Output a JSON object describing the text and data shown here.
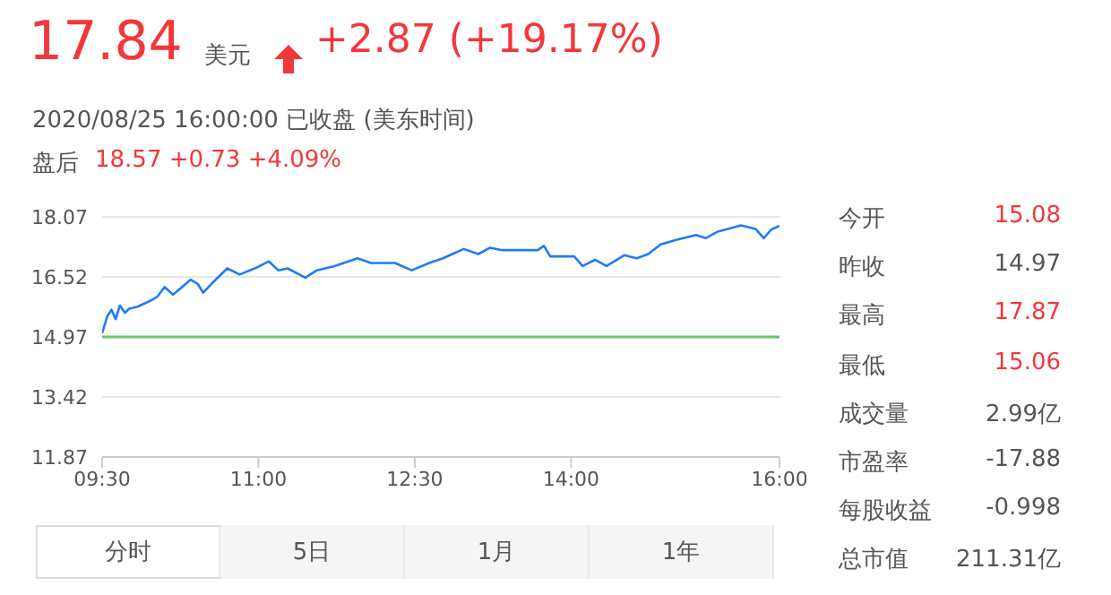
{
  "chart_data": {
    "type": "line",
    "x": [
      9.5,
      9.55,
      9.59,
      9.63,
      9.67,
      9.72,
      9.76,
      9.84,
      9.96,
      10.03,
      10.1,
      10.18,
      10.25,
      10.35,
      10.42,
      10.47,
      10.56,
      10.7,
      10.82,
      10.99,
      11.1,
      11.19,
      11.28,
      11.45,
      11.56,
      11.73,
      11.95,
      12.08,
      12.31,
      12.47,
      12.65,
      12.77,
      12.97,
      13.11,
      13.22,
      13.34,
      13.51,
      13.68,
      13.74,
      13.8,
      14.03,
      14.11,
      14.23,
      14.34,
      14.51,
      14.63,
      14.74,
      14.86,
      15.0,
      15.2,
      15.29,
      15.4,
      15.63,
      15.77,
      15.85,
      15.92,
      16.0
    ],
    "series": [
      {
        "color": "#1f7cf5",
        "values": [
          15.07,
          15.51,
          15.67,
          15.43,
          15.78,
          15.59,
          15.7,
          15.75,
          15.9,
          16.01,
          16.26,
          16.06,
          16.22,
          16.45,
          16.33,
          16.11,
          16.37,
          16.74,
          16.58,
          16.77,
          16.92,
          16.69,
          16.74,
          16.5,
          16.69,
          16.8,
          17.0,
          16.88,
          16.88,
          16.69,
          16.89,
          17.0,
          17.24,
          17.11,
          17.27,
          17.21,
          17.21,
          17.21,
          17.32,
          17.05,
          17.05,
          16.8,
          16.96,
          16.8,
          17.08,
          17.0,
          17.11,
          17.36,
          17.47,
          17.6,
          17.52,
          17.68,
          17.85,
          17.76,
          17.52,
          17.74,
          17.84
        ]
      }
    ],
    "xlim": [
      9.5,
      16
    ],
    "xticks": [
      {
        "value": 9.5,
        "label": "09:30"
      },
      {
        "value": 11,
        "label": "11:00"
      },
      {
        "value": 12.5,
        "label": "12:30"
      },
      {
        "value": 14,
        "label": "14:00"
      },
      {
        "value": 16,
        "label": "16:00"
      }
    ],
    "ylim": [
      11.87,
      18.07
    ],
    "yticks": [
      11.87,
      13.42,
      14.97,
      16.52,
      18.07
    ],
    "grid": "y",
    "marker": "none",
    "ref_lines": [
      {
        "axis": "y",
        "value": 14.97,
        "color": "#6cc46c"
      }
    ],
    "annotations": [
      "17.84",
      "美元",
      "+2.87 (+19.17%)",
      "2020/08/25 16:00:00 已收盘 (美东时间)",
      "盘后",
      "18.57 +0.73 +4.09%",
      "今开",
      "15.08",
      "昨收",
      "14.97",
      "最高",
      "17.87",
      "最低",
      "15.06",
      "成交量",
      "2.99亿",
      "市盈率",
      "-17.88",
      "每股收益",
      "-0.998",
      "总市值",
      "211.31亿",
      "分时",
      "5日",
      "1月",
      "1年"
    ]
  }
}
